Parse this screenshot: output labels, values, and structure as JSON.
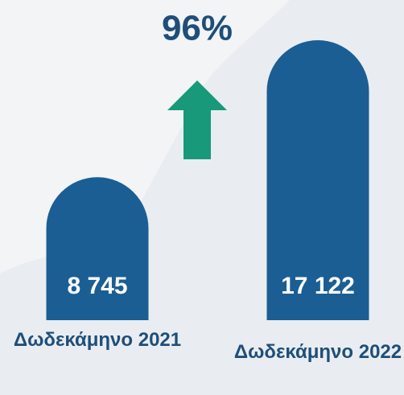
{
  "chart_data": {
    "type": "bar",
    "annotation": "96%",
    "categories": [
      "Δωδεκάμηνο 2021",
      "Δωδεκάμηνο 2022"
    ],
    "values": [
      8745,
      17122
    ],
    "value_labels": [
      "8 745",
      "17 122"
    ],
    "color": "#1a5e94",
    "arrow_color": "#17997a"
  }
}
